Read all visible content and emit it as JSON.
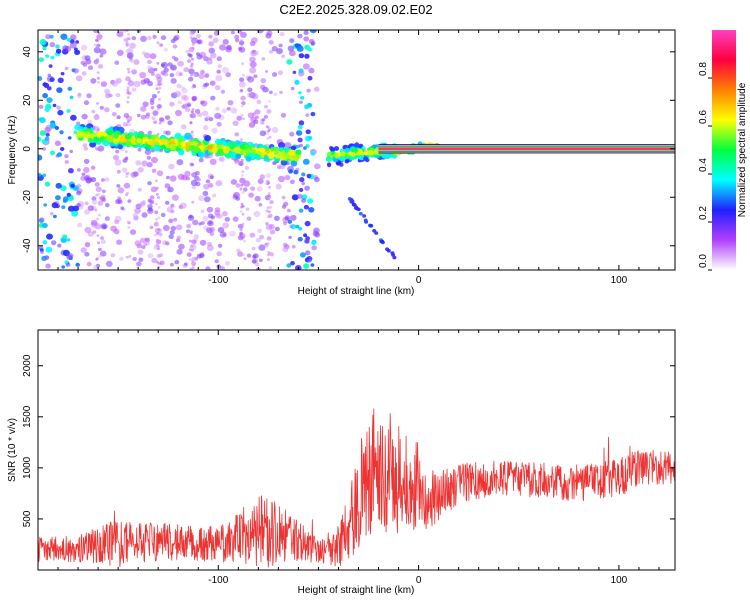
{
  "figure": {
    "title": "C2E2.2025.328.09.02.E02"
  },
  "chart_data": [
    {
      "type": "heatmap",
      "title": "",
      "xlabel": "Height of straight line (km)",
      "ylabel": "Frequency (Hz)",
      "xlim": [
        -190,
        128
      ],
      "ylim": [
        -50,
        49
      ],
      "xticks": [
        -100,
        0,
        100
      ],
      "xtick_labels": [
        "-100",
        "0",
        "100"
      ],
      "yticks": [
        -40,
        -20,
        0,
        20,
        40
      ],
      "ytick_labels": [
        "-40",
        "-20",
        "0",
        "20",
        "40"
      ],
      "colorbar": {
        "label": "Normalized spectral amplitude",
        "range": [
          0,
          1
        ],
        "ticks": [
          0,
          0.2,
          0.4,
          0.6,
          0.8
        ],
        "tick_labels": [
          "0.0",
          "0.2",
          "0.4",
          "0.6",
          "0.8"
        ],
        "colors": [
          "#ffffff",
          "#b040ff",
          "#2020ff",
          "#00ffff",
          "#00ff40",
          "#ffff00",
          "#ff8000",
          "#ff0040",
          "#ff40c0"
        ]
      },
      "features": [
        {
          "name": "speckle background",
          "x_range": [
            -190,
            -50
          ],
          "freq_range": [
            -50,
            49
          ],
          "level": 0.15
        },
        {
          "name": "dispersed band",
          "x_range": [
            -170,
            -60
          ],
          "freq_start": 6,
          "freq_end": -3,
          "level": 0.35
        },
        {
          "name": "descending branch",
          "x_range": [
            -35,
            -12
          ],
          "freq_start": -20,
          "freq_end": -45,
          "level": 0.2
        },
        {
          "name": "converging band",
          "x_range": [
            -45,
            10
          ],
          "freq_start": -3,
          "freq_end": 1,
          "level": 0.4
        },
        {
          "name": "steady carrier line",
          "x_range": [
            -20,
            128
          ],
          "freq": 0,
          "level": 0.95
        }
      ]
    },
    {
      "type": "line",
      "title": "",
      "xlabel": "Height of straight line (km)",
      "ylabel": "SNR (10 * v/v)",
      "xlim": [
        -190,
        128
      ],
      "ylim": [
        0,
        2350
      ],
      "xticks": [
        -100,
        0,
        100
      ],
      "xtick_labels": [
        "-100",
        "0",
        "100"
      ],
      "yticks": [
        500,
        1000,
        1500,
        2000
      ],
      "ytick_labels": [
        "500",
        "1000",
        "1500",
        "2000"
      ],
      "series": [
        {
          "name": "SNR",
          "color": "#ee3333",
          "x": [
            -190,
            -170,
            -160,
            -150,
            -140,
            -120,
            -100,
            -90,
            -80,
            -70,
            -60,
            -50,
            -40,
            -35,
            -30,
            -25,
            -20,
            -15,
            -10,
            -5,
            0,
            5,
            10,
            20,
            40,
            60,
            80,
            100,
            110,
            128
          ],
          "base": [
            200,
            210,
            240,
            260,
            270,
            280,
            250,
            340,
            360,
            360,
            280,
            210,
            230,
            420,
            700,
            900,
            950,
            950,
            900,
            850,
            750,
            700,
            700,
            850,
            900,
            880,
            850,
            900,
            1000,
            1000
          ],
          "amp": [
            120,
            130,
            180,
            240,
            200,
            180,
            180,
            260,
            380,
            300,
            200,
            140,
            200,
            350,
            500,
            650,
            700,
            600,
            550,
            450,
            400,
            300,
            260,
            200,
            170,
            170,
            180,
            190,
            190,
            160
          ]
        }
      ]
    }
  ]
}
